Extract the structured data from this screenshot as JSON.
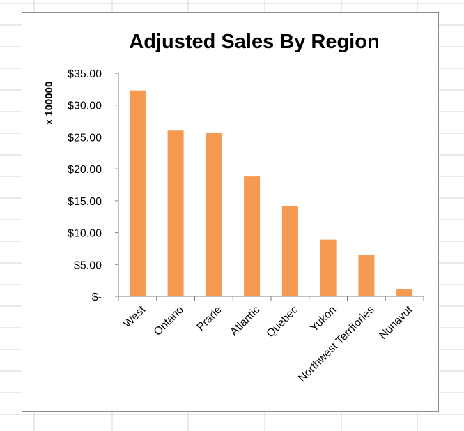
{
  "colors": {
    "bar": "#f79a51",
    "grid_line": "#d6d6d6",
    "axis": "#7f7f7f",
    "text": "#000000",
    "frame_border": "#8c8c8c"
  },
  "chart_data": {
    "type": "bar",
    "title": "Adjusted Sales By Region",
    "xlabel": "",
    "ylabel": "x 100000",
    "categories": [
      "West",
      "Ontario",
      "Prarie",
      "Atlantic",
      "Quebec",
      "Yukon",
      "Northwest Territories",
      "Nunavut"
    ],
    "values": [
      32.3,
      26.0,
      25.6,
      18.8,
      14.2,
      8.9,
      6.5,
      1.2
    ],
    "ylim": [
      0,
      35
    ],
    "yticks": [
      0,
      5,
      10,
      15,
      20,
      25,
      30,
      35
    ],
    "ytick_labels": [
      "$-",
      "$5.00",
      "$10.00",
      "$15.00",
      "$20.00",
      "$25.00",
      "$30.00",
      "$35.00"
    ],
    "grid": false,
    "legend": "none"
  }
}
